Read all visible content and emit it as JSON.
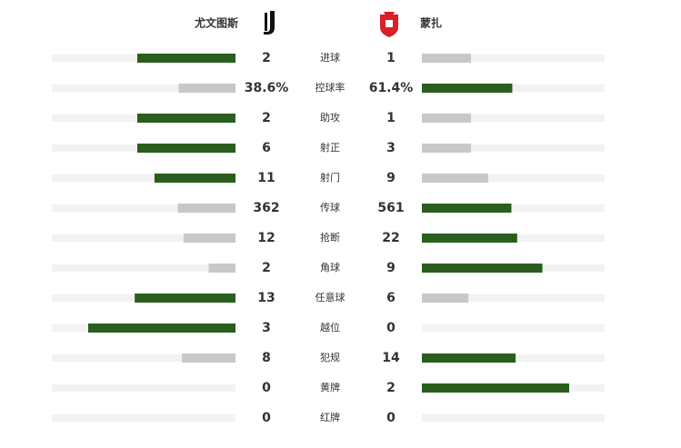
{
  "header": {
    "home": "尤文图斯",
    "away": "蒙扎"
  },
  "rows": [
    {
      "label": "进球",
      "home": 2,
      "away": 1
    },
    {
      "label": "控球率",
      "home": 38.6,
      "home_label": "38.6%",
      "away": 61.4,
      "away_label": "61.4%"
    },
    {
      "label": "助攻",
      "home": 2,
      "away": 1
    },
    {
      "label": "射正",
      "home": 6,
      "away": 3
    },
    {
      "label": "射门",
      "home": 11,
      "away": 9
    },
    {
      "label": "传球",
      "home": 362,
      "away": 561
    },
    {
      "label": "抢断",
      "home": 12,
      "away": 22
    },
    {
      "label": "角球",
      "home": 2,
      "away": 9
    },
    {
      "label": "任意球",
      "home": 13,
      "away": 6
    },
    {
      "label": "越位",
      "home": 3,
      "away": 0
    },
    {
      "label": "犯规",
      "home": 8,
      "away": 14
    },
    {
      "label": "黄牌",
      "home": 0,
      "away": 2
    },
    {
      "label": "红牌",
      "home": 0,
      "away": 0
    }
  ]
}
